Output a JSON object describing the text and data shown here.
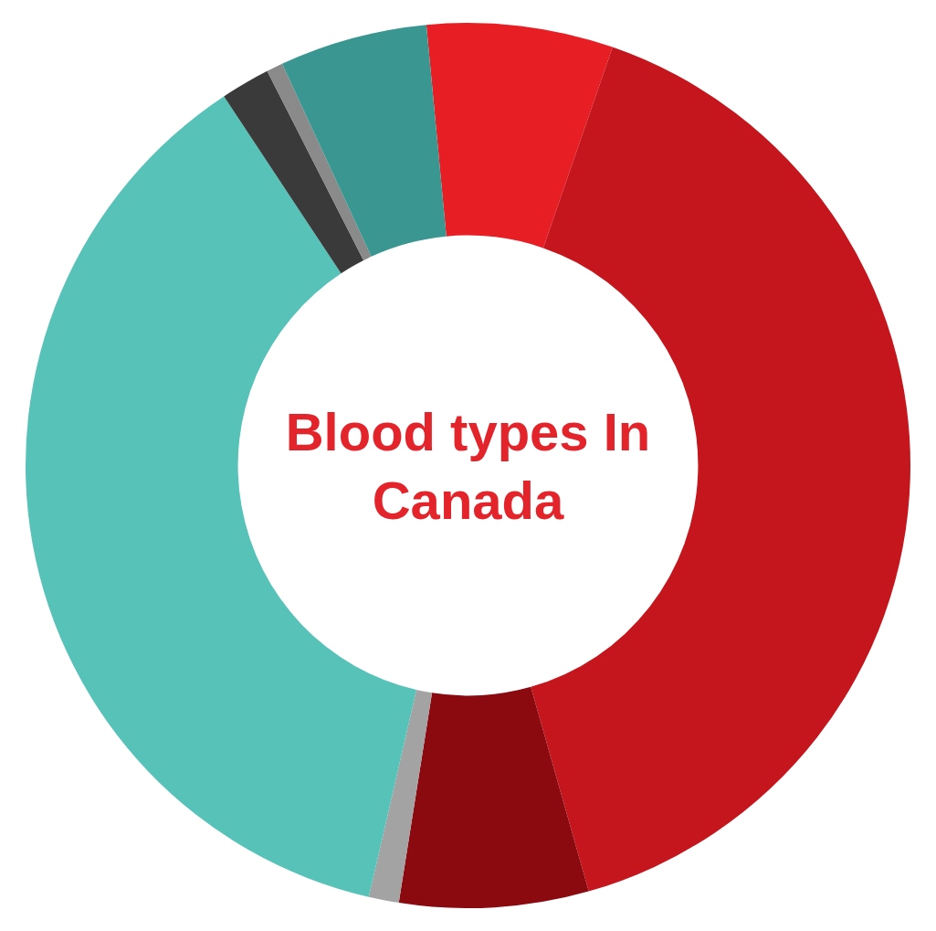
{
  "chart_data": {
    "type": "donut",
    "title": "Blood types In Canada",
    "categories": [
      null,
      null,
      null,
      null,
      null,
      null,
      null,
      null
    ],
    "values": [
      6.8,
      40.3,
      6.9,
      1.1,
      37.1,
      1.8,
      0.6,
      5.4
    ],
    "colors": [
      "#e81e25",
      "#c4161c",
      "#8b0a10",
      "#a3a3a3",
      "#56c2b8",
      "#3a3a3a",
      "#8a8a8a",
      "#3a9690"
    ],
    "legend": false
  }
}
